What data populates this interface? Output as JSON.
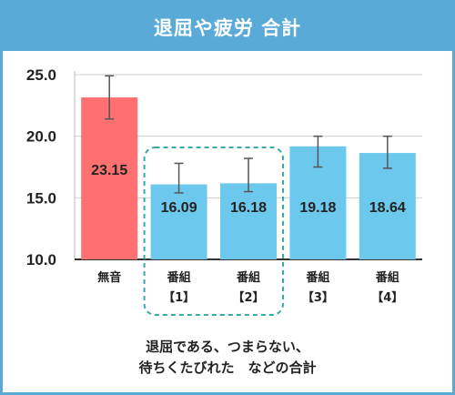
{
  "chart_data": {
    "type": "bar",
    "title": "退屈や疲労 合計",
    "caption_lines": [
      "退屈である、つまらない、",
      "待ちくたびれた　などの合計"
    ],
    "categories": [
      {
        "line1": "無音",
        "line2": ""
      },
      {
        "line1": "番組",
        "line2": "【1】"
      },
      {
        "line1": "番組",
        "line2": "【2】"
      },
      {
        "line1": "番組",
        "line2": "【3】"
      },
      {
        "line1": "番組",
        "line2": "【4】"
      }
    ],
    "values": [
      23.15,
      16.09,
      16.18,
      19.18,
      18.64
    ],
    "value_labels": [
      "23.15",
      "16.09",
      "16.18",
      "19.18",
      "18.64"
    ],
    "error_low": [
      21.4,
      15.4,
      15.5,
      17.5,
      17.4
    ],
    "error_high": [
      24.9,
      17.8,
      18.2,
      20.0,
      20.0
    ],
    "ylim": [
      10,
      25
    ],
    "yticks": [
      "10.0",
      "15.0",
      "20.0",
      "25.0"
    ],
    "ytick_values": [
      10,
      15,
      20,
      25
    ],
    "grid": true,
    "highlight_group": [
      1,
      2
    ],
    "colors": {
      "highlight_bar": "#ff7070",
      "bar": "#6cc8ec",
      "frame": "#5aaad8",
      "grid": "#cfcfcf",
      "error": "#555555",
      "dashed": "#3aa8a8"
    }
  }
}
